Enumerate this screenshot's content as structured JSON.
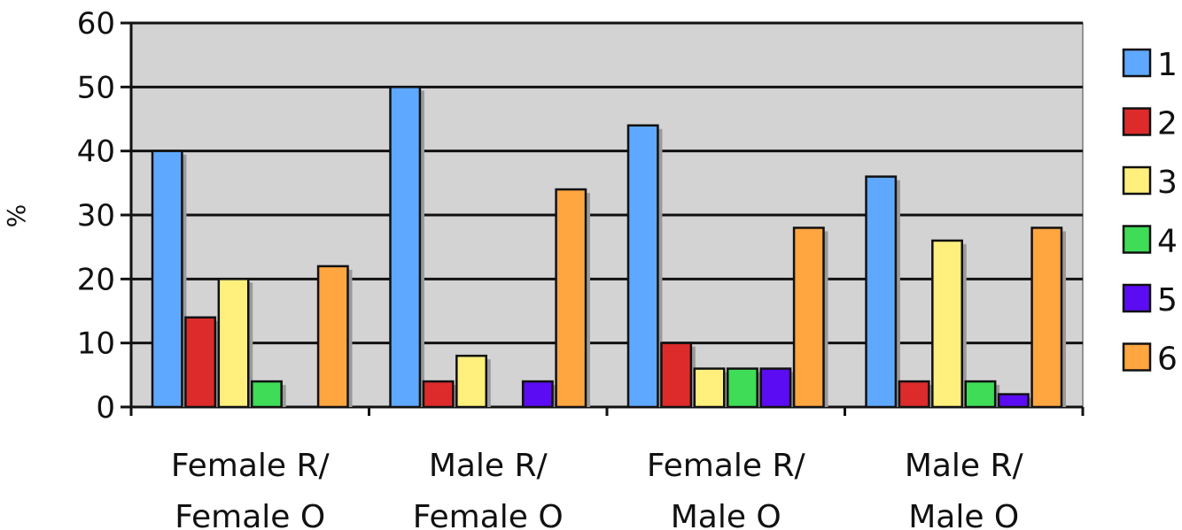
{
  "chart_data": {
    "type": "bar",
    "title": "",
    "xlabel": "",
    "ylabel": "%",
    "ylim": [
      0,
      60
    ],
    "yticks": [
      "0",
      "10",
      "20",
      "30",
      "40",
      "50",
      "60"
    ],
    "grid": true,
    "legend_position": "right",
    "categories": [
      [
        "Female R/",
        "Female O"
      ],
      [
        "Male R/",
        "Female O"
      ],
      [
        "Female R/",
        "Male O"
      ],
      [
        "Male R/",
        "Male O"
      ]
    ],
    "series": [
      {
        "name": "1",
        "color": "#5fa8ff",
        "values": [
          40,
          50,
          44,
          36
        ]
      },
      {
        "name": "2",
        "color": "#dd2b2b",
        "values": [
          14,
          4,
          10,
          4
        ]
      },
      {
        "name": "3",
        "color": "#fff07d",
        "values": [
          20,
          8,
          6,
          26
        ]
      },
      {
        "name": "4",
        "color": "#3fdc57",
        "values": [
          4,
          0,
          6,
          4
        ]
      },
      {
        "name": "5",
        "color": "#5b0cf2",
        "values": [
          0,
          4,
          6,
          2
        ]
      },
      {
        "name": "6",
        "color": "#ffa640",
        "values": [
          22,
          34,
          28,
          28
        ]
      }
    ],
    "plot_background": "#d3d3d3"
  }
}
